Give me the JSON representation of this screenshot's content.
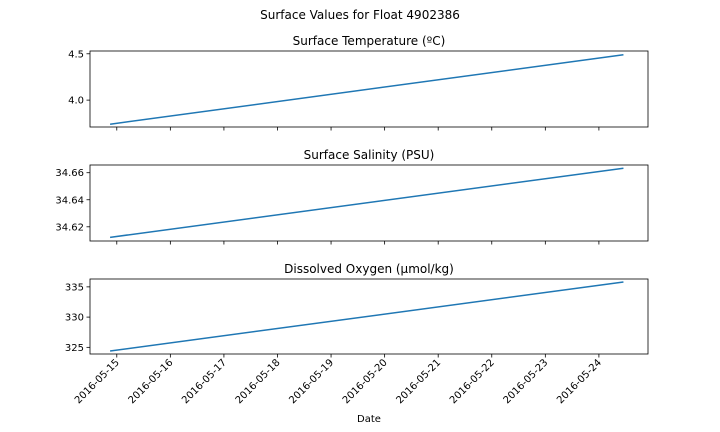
{
  "figure": {
    "suptitle": "Surface Values for Float 4902386",
    "xlabel": "Date",
    "line_color": "#1f77b4"
  },
  "chart_data": [
    {
      "type": "line",
      "title": "Surface Temperature (ºC)",
      "xlabel": "",
      "ylabel": "",
      "x": [
        "2016-05-14T21:00",
        "2016-05-24T11:00"
      ],
      "series": [
        {
          "values": [
            3.74,
            4.49
          ]
        }
      ],
      "xlim": [
        "2016-05-14T12:00",
        "2016-05-24T22:00"
      ],
      "ylim": [
        3.71,
        4.53
      ],
      "yticks": [
        4.0,
        4.5
      ],
      "ytick_labels": [
        "4.0",
        "4.5"
      ],
      "grid": false
    },
    {
      "type": "line",
      "title": "Surface Salinity (PSU)",
      "xlabel": "",
      "ylabel": "",
      "x": [
        "2016-05-14T21:00",
        "2016-05-24T11:00"
      ],
      "series": [
        {
          "values": [
            34.6122,
            34.6633
          ]
        }
      ],
      "xlim": [
        "2016-05-14T12:00",
        "2016-05-24T22:00"
      ],
      "ylim": [
        34.6095,
        34.6657
      ],
      "yticks": [
        34.62,
        34.64,
        34.66
      ],
      "ytick_labels": [
        "34.62",
        "34.64",
        "34.66"
      ],
      "grid": false
    },
    {
      "type": "line",
      "title": "Dissolved Oxygen (µmol/kg)",
      "xlabel": "Date",
      "ylabel": "",
      "x": [
        "2016-05-14T21:00",
        "2016-05-24T11:00"
      ],
      "series": [
        {
          "values": [
            324.4,
            335.8
          ]
        }
      ],
      "xlim": [
        "2016-05-14T12:00",
        "2016-05-24T22:00"
      ],
      "ylim": [
        323.9,
        336.3
      ],
      "yticks": [
        325,
        330,
        335
      ],
      "ytick_labels": [
        "325",
        "330",
        "335"
      ],
      "xticks": [
        "2016-05-15",
        "2016-05-16",
        "2016-05-17",
        "2016-05-18",
        "2016-05-19",
        "2016-05-20",
        "2016-05-21",
        "2016-05-22",
        "2016-05-23",
        "2016-05-24"
      ],
      "grid": false
    }
  ]
}
